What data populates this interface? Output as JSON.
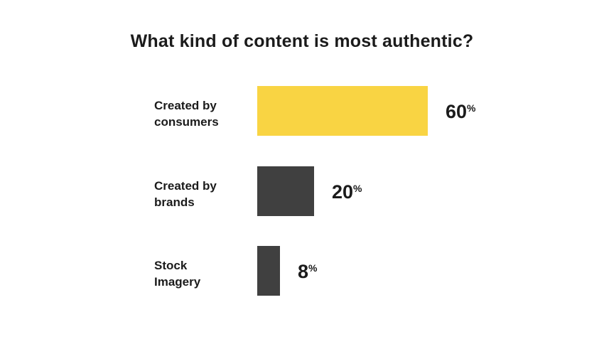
{
  "chart_data": {
    "type": "bar",
    "orientation": "horizontal",
    "title": "What kind of content is most authentic?",
    "categories": [
      {
        "lines": [
          "Created by",
          "consumers"
        ]
      },
      {
        "lines": [
          "Created by",
          "brands"
        ]
      },
      {
        "lines": [
          "Stock",
          "Imagery"
        ]
      }
    ],
    "values": [
      60,
      20,
      8
    ],
    "unit": "%",
    "colors": [
      "#f9d443",
      "#404040",
      "#404040"
    ],
    "xlim": [
      0,
      100
    ]
  }
}
